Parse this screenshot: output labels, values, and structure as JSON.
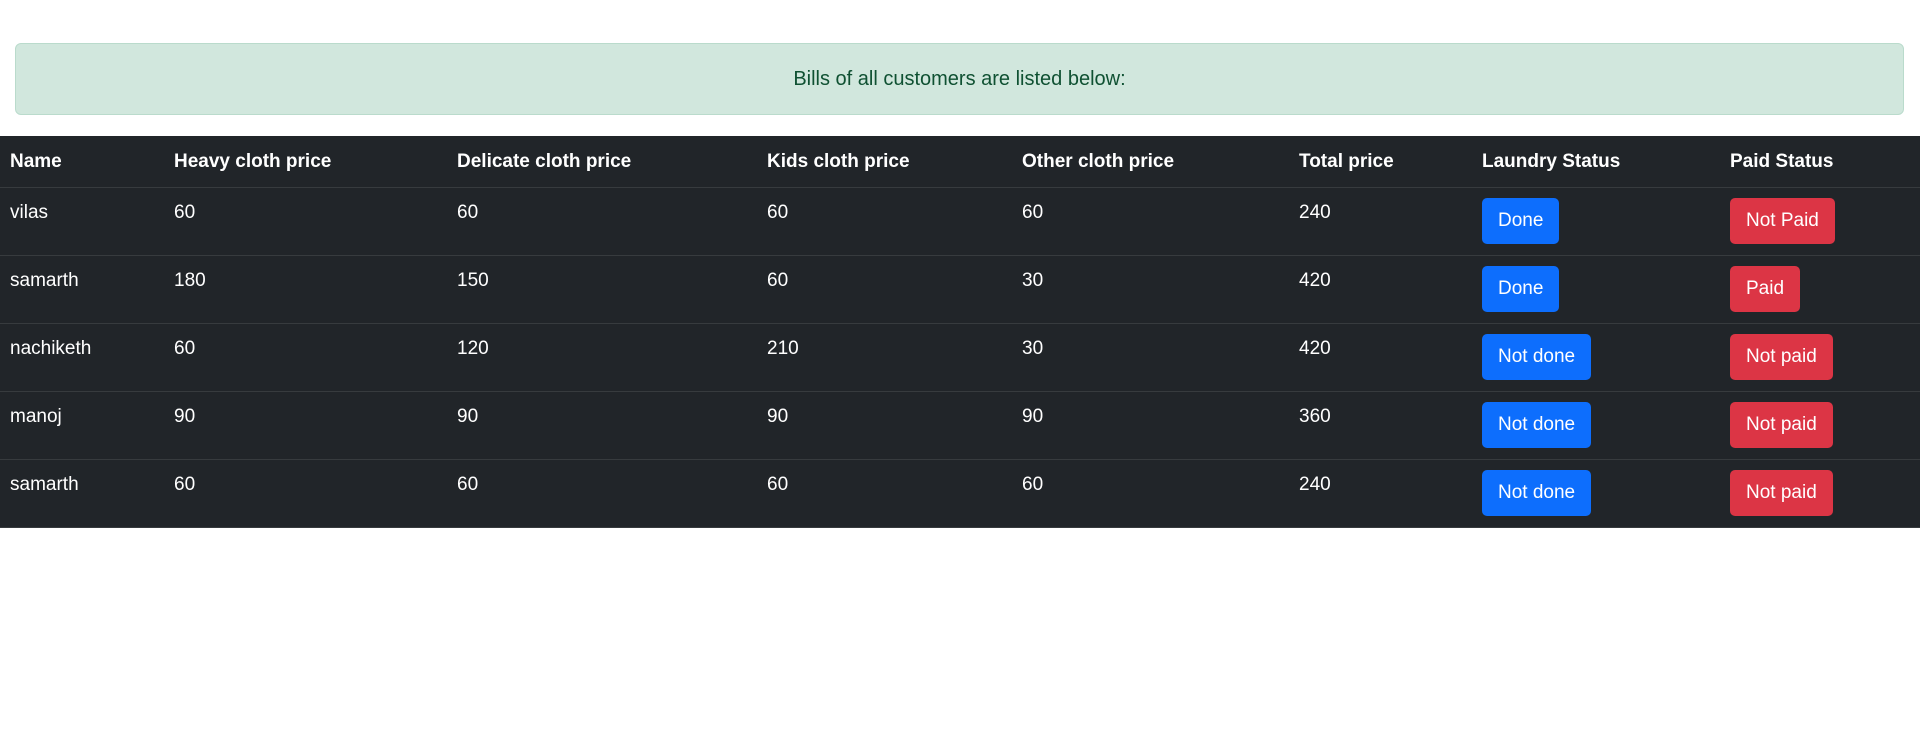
{
  "alert": {
    "message": "Bills of all customers are listed below:"
  },
  "table": {
    "headers": {
      "name": "Name",
      "heavy": "Heavy cloth price",
      "delicate": "Delicate cloth price",
      "kids": "Kids cloth price",
      "other": "Other cloth price",
      "total": "Total price",
      "laundry": "Laundry Status",
      "paid": "Paid Status"
    },
    "rows": [
      {
        "name": "vilas",
        "heavy": "60",
        "delicate": "60",
        "kids": "60",
        "other": "60",
        "total": "240",
        "laundry": "Done",
        "paid": "Not Paid"
      },
      {
        "name": "samarth",
        "heavy": "180",
        "delicate": "150",
        "kids": "60",
        "other": "30",
        "total": "420",
        "laundry": "Done",
        "paid": "Paid"
      },
      {
        "name": "nachiketh",
        "heavy": "60",
        "delicate": "120",
        "kids": "210",
        "other": "30",
        "total": "420",
        "laundry": "Not done",
        "paid": "Not paid"
      },
      {
        "name": "manoj",
        "heavy": "90",
        "delicate": "90",
        "kids": "90",
        "other": "90",
        "total": "360",
        "laundry": "Not done",
        "paid": "Not paid"
      },
      {
        "name": "samarth",
        "heavy": "60",
        "delicate": "60",
        "kids": "60",
        "other": "60",
        "total": "240",
        "laundry": "Not done",
        "paid": "Not paid"
      }
    ]
  },
  "colors": {
    "table_background": "#212529",
    "alert_background": "#d1e7dd",
    "alert_text": "#0f5132",
    "laundry_button": "#0d6efd",
    "paid_button": "#dc3545"
  }
}
